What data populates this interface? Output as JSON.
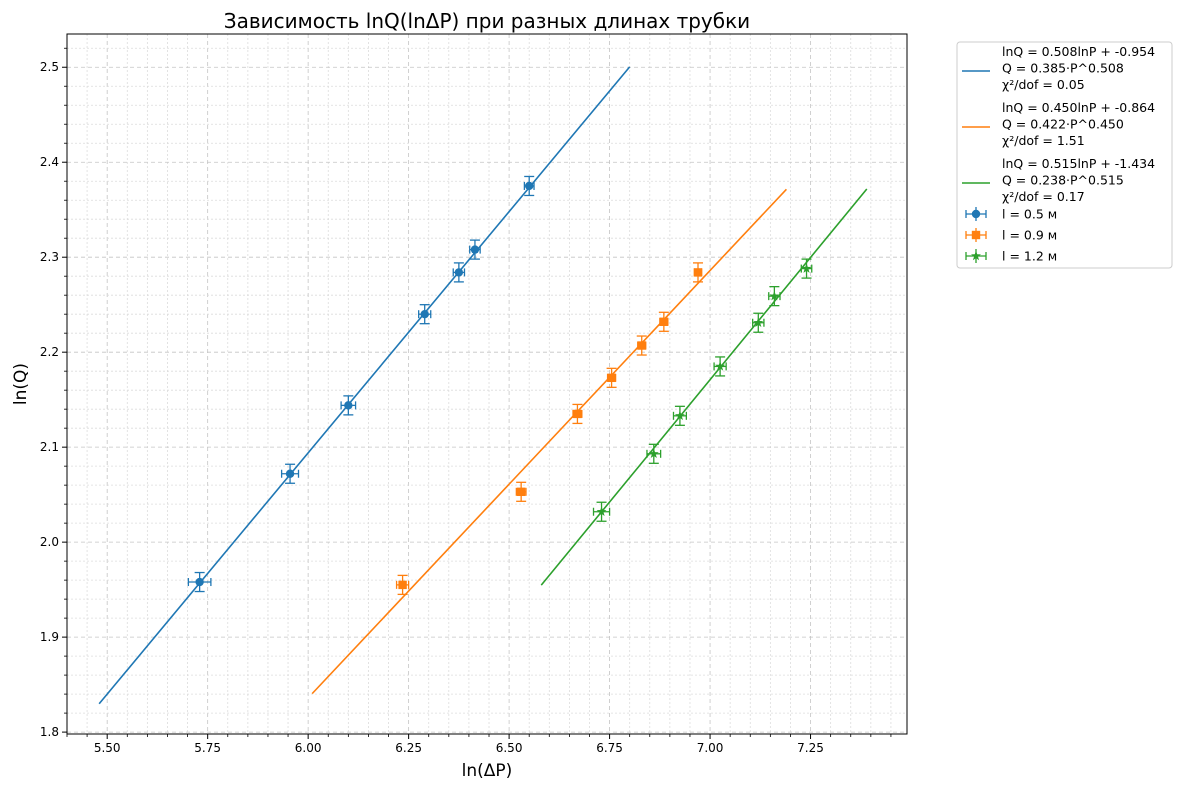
{
  "chart_data": {
    "type": "scatter",
    "title": "Зависимость lnQ(lnΔP) при разных длинах трубки",
    "xlabel": "ln(ΔP)",
    "ylabel": "ln(Q)",
    "xlim": [
      5.4,
      7.49
    ],
    "ylim": [
      1.798,
      2.535
    ],
    "xticks": [
      "5.50",
      "5.75",
      "6.00",
      "6.25",
      "6.50",
      "6.75",
      "7.00",
      "7.25"
    ],
    "xtick_values": [
      5.5,
      5.75,
      6.0,
      6.25,
      6.5,
      6.75,
      7.0,
      7.25
    ],
    "yticks": [
      "1.8",
      "1.9",
      "2.0",
      "2.1",
      "2.2",
      "2.3",
      "2.4",
      "2.5"
    ],
    "ytick_values": [
      1.8,
      1.9,
      2.0,
      2.1,
      2.2,
      2.3,
      2.4,
      2.5
    ],
    "grid": true,
    "legend_position": "outside-top-right",
    "series": [
      {
        "name": "l = 0.5 м",
        "color": "#1f77b4",
        "marker": "circle",
        "x": [
          5.73,
          5.955,
          6.1,
          6.29,
          6.375,
          6.415,
          6.55
        ],
        "y": [
          1.958,
          2.072,
          2.144,
          2.24,
          2.284,
          2.308,
          2.375
        ],
        "xerr": [
          0.028,
          0.021,
          0.018,
          0.015,
          0.014,
          0.013,
          0.012
        ],
        "yerr": [
          0.01,
          0.01,
          0.01,
          0.01,
          0.01,
          0.01,
          0.01
        ],
        "fit": {
          "label": "lnQ = 0.508lnP + -0.954\nQ = 0.385·P^0.508\nχ²/dof = 0.05",
          "x_range": [
            5.48,
            6.8
          ]
        }
      },
      {
        "name": "l = 0.9 м",
        "color": "#ff7f0e",
        "marker": "square",
        "x": [
          6.235,
          6.53,
          6.67,
          6.755,
          6.83,
          6.885,
          6.97
        ],
        "y": [
          1.955,
          2.053,
          2.135,
          2.173,
          2.207,
          2.232,
          2.284
        ],
        "xerr": [
          0.015,
          0.012,
          0.011,
          0.01,
          0.01,
          0.01,
          0.009
        ],
        "yerr": [
          0.01,
          0.01,
          0.01,
          0.01,
          0.01,
          0.01,
          0.01
        ],
        "fit": {
          "label": "lnQ = 0.450lnP + -0.864\nQ = 0.422·P^0.450\nχ²/dof = 1.51",
          "x_range": [
            6.01,
            7.19
          ]
        }
      },
      {
        "name": "l = 1.2 м",
        "color": "#2ca02c",
        "marker": "star",
        "x": [
          6.73,
          6.86,
          6.925,
          7.025,
          7.12,
          7.16,
          7.24
        ],
        "y": [
          2.032,
          2.093,
          2.133,
          2.185,
          2.231,
          2.259,
          2.288
        ],
        "xerr": [
          0.02,
          0.017,
          0.016,
          0.015,
          0.014,
          0.014,
          0.013
        ],
        "yerr": [
          0.01,
          0.01,
          0.01,
          0.01,
          0.01,
          0.01,
          0.01
        ],
        "fit": {
          "label": "lnQ = 0.515lnP + -1.434\nQ = 0.238·P^0.515\nχ²/dof = 0.17",
          "x_range": [
            6.58,
            7.39
          ]
        }
      }
    ]
  }
}
